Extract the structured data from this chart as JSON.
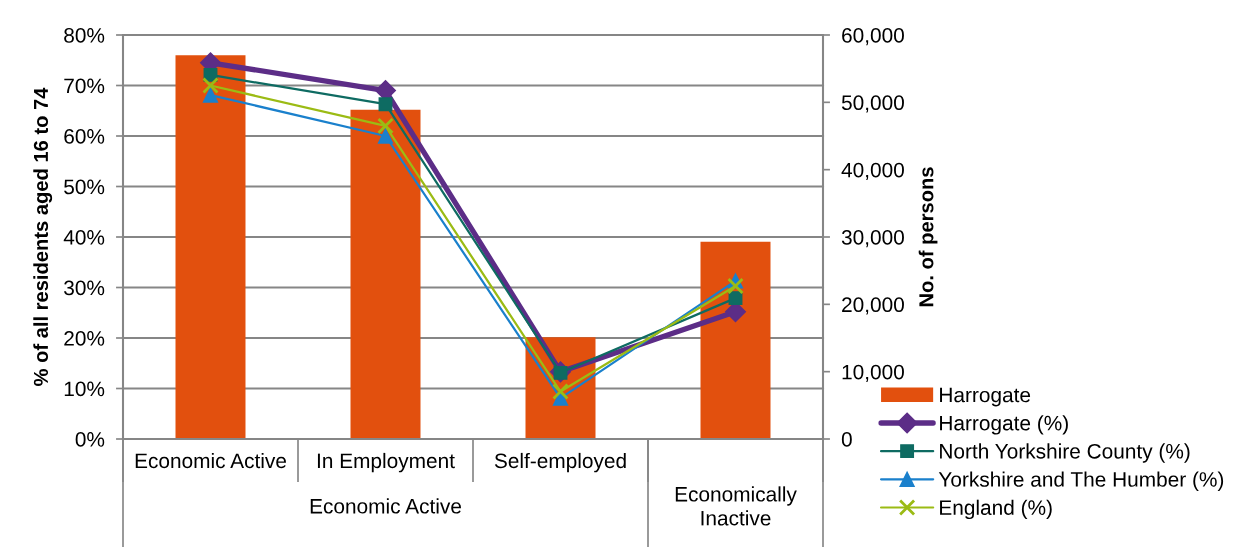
{
  "chart_data": {
    "type": "line",
    "ylabel": "% of all residents aged 16 to 74",
    "y2label": "No. of persons",
    "categories": [
      "Economic Active",
      "In Employment",
      "Self-employed",
      null
    ],
    "annotations": [
      "Economic Active",
      "Economically Inactive"
    ],
    "series": [
      {
        "name": "Harrogate",
        "type": "bar",
        "axis": "y2",
        "color": "#e2500e",
        "values": [
          57000,
          48900,
          15100,
          29300
        ]
      },
      {
        "name": "Harrogate (%)",
        "color": "#5c2d87",
        "marker": "diamond",
        "values": [
          74.5,
          69.0,
          13.3,
          25.2
        ]
      },
      {
        "name": "North Yorkshire County (%)",
        "color": "#0e6b62",
        "marker": "square",
        "values": [
          72.1,
          66.3,
          13.1,
          27.9
        ]
      },
      {
        "name": "Yorkshire and The Humber (%)",
        "color": "#1a80cc",
        "marker": "triangle",
        "values": [
          68.1,
          60.0,
          8.1,
          31.3
        ]
      },
      {
        "name": "England (%)",
        "color": "#9bbb14",
        "marker": "cross",
        "values": [
          70.0,
          62.0,
          9.4,
          30.3
        ]
      }
    ],
    "ylim": [
      0,
      80
    ],
    "yticks": [
      {
        "value": 0,
        "label": "0%"
      },
      {
        "value": 10,
        "label": "10%"
      },
      {
        "value": 20,
        "label": "20%"
      },
      {
        "value": 30,
        "label": "30%"
      },
      {
        "value": 40,
        "label": "40%"
      },
      {
        "value": 50,
        "label": "50%"
      },
      {
        "value": 60,
        "label": "60%"
      },
      {
        "value": 70,
        "label": "70%"
      },
      {
        "value": 80,
        "label": "80%"
      }
    ],
    "y2lim": [
      0,
      60000
    ],
    "y2ticks": [
      0,
      {
        "value": 10000,
        "label": "10,000"
      },
      {
        "value": 20000,
        "label": "20,000"
      },
      {
        "value": 30000,
        "label": "30,000"
      },
      {
        "value": 40000,
        "label": "40,000"
      },
      {
        "value": 50000,
        "label": "50,000"
      },
      {
        "value": 60000,
        "label": "60,000"
      }
    ],
    "grid": "y",
    "legend": "right",
    "line_style": "solid"
  }
}
